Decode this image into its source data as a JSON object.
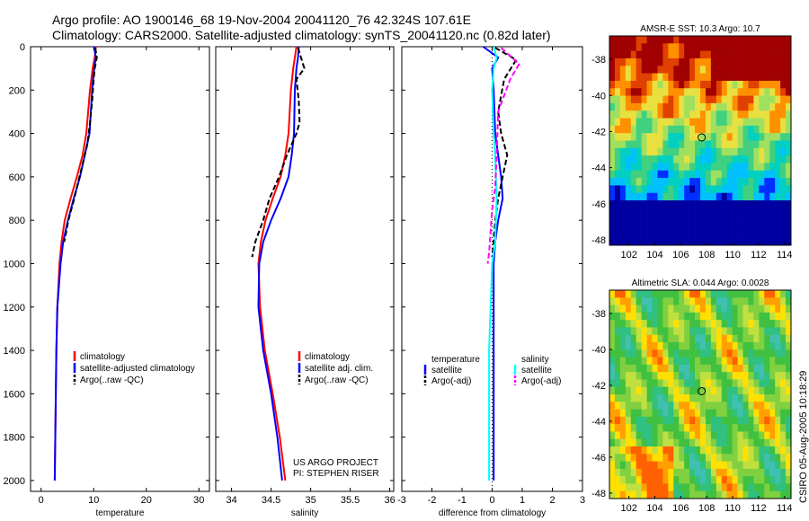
{
  "header": {
    "line1": "Argo profile: AO 1900146_68 19-Nov-2004 20041120_76 42.324S 107.61E",
    "line2": "Climatology: CARS2000. Satellite-adjusted climatology: synTS_20041120.nc (0.82d later)"
  },
  "credit": "CSIRO 05-Aug-2005 10:18:29",
  "colors": {
    "climatology": "#ff0000",
    "satellite": "#0000ff",
    "argo": "#000000",
    "diff_temperature_satellite": "#0000ff",
    "diff_temperature_argo": "#000000",
    "diff_salinity_satellite": "#00ffff",
    "diff_salinity_argo": "#ff00ff"
  },
  "chart_data": [
    {
      "id": "temperature",
      "type": "line",
      "xlabel": "temperature",
      "ylabel": "",
      "xlim": [
        -2,
        32
      ],
      "ylim": [
        2050,
        0
      ],
      "xticks": [
        "0",
        "10",
        "20",
        "30"
      ],
      "yticks": [
        "0",
        "200",
        "400",
        "600",
        "800",
        "1000",
        "1200",
        "1400",
        "1600",
        "1800",
        "2000"
      ],
      "legend": [
        "climatology",
        "satellite-adjusted climatology",
        "Argo(..raw -QC)"
      ],
      "series": [
        {
          "name": "climatology",
          "x": [
            10.4,
            10.2,
            9.8,
            9.3,
            8.6,
            7.9,
            6.8,
            5.6,
            4.5,
            3.9,
            3.5,
            3.1,
            2.9,
            2.8,
            2.7,
            2.6
          ],
          "y": [
            0,
            50,
            100,
            200,
            400,
            500,
            600,
            700,
            800,
            900,
            1000,
            1200,
            1400,
            1600,
            1800,
            2000
          ]
        },
        {
          "name": "satellite-adjusted climatology",
          "x": [
            10.1,
            10.4,
            10.1,
            9.7,
            9.2,
            8.3,
            7.4,
            6.2,
            5.1,
            4.2,
            3.7,
            3.1,
            2.9,
            2.8,
            2.7,
            2.6
          ],
          "y": [
            0,
            50,
            100,
            200,
            400,
            500,
            600,
            700,
            800,
            900,
            1000,
            1200,
            1400,
            1600,
            1800,
            2000
          ]
        },
        {
          "name": "Argo(..raw -QC)",
          "x": [
            10.3,
            10.6,
            10.2,
            10.0,
            9.7,
            9.3,
            8.8,
            8.3,
            7.3,
            6.3,
            5.2,
            4.4
          ],
          "y": [
            5,
            50,
            100,
            150,
            250,
            350,
            450,
            500,
            600,
            700,
            800,
            900
          ]
        }
      ]
    },
    {
      "id": "salinity",
      "type": "line",
      "xlabel": "salinity",
      "ylabel": "",
      "xlim": [
        33.8,
        36.05
      ],
      "ylim": [
        2050,
        0
      ],
      "xticks": [
        "34",
        "34.5",
        "35",
        "35.5",
        "36"
      ],
      "legend": [
        "climatology",
        "satellite adj. clim.",
        "Argo(..raw -QC)"
      ],
      "annotation": [
        "US ARGO PROJECT",
        "PI: STEPHEN RISER"
      ],
      "series": [
        {
          "name": "climatology",
          "x": [
            34.82,
            34.8,
            34.78,
            34.75,
            34.72,
            34.68,
            34.62,
            34.52,
            34.43,
            34.37,
            34.34,
            34.36,
            34.42,
            34.52,
            34.61,
            34.68
          ],
          "y": [
            0,
            50,
            100,
            200,
            400,
            500,
            600,
            700,
            800,
            900,
            1000,
            1200,
            1400,
            1600,
            1800,
            2000
          ]
        },
        {
          "name": "satellite adj. clim.",
          "x": [
            34.85,
            34.84,
            34.82,
            34.8,
            34.79,
            34.76,
            34.72,
            34.62,
            34.5,
            34.4,
            34.35,
            34.34,
            34.4,
            34.5,
            34.58,
            34.64
          ],
          "y": [
            0,
            50,
            100,
            200,
            400,
            500,
            600,
            700,
            800,
            900,
            1000,
            1200,
            1400,
            1600,
            1800,
            2000
          ]
        },
        {
          "name": "Argo(..raw -QC)",
          "x": [
            34.84,
            34.92,
            34.82,
            34.85,
            34.86,
            34.82,
            34.7,
            34.6,
            34.48,
            34.4,
            34.3,
            34.26
          ],
          "y": [
            5,
            100,
            150,
            250,
            350,
            400,
            500,
            600,
            700,
            800,
            900,
            970
          ]
        }
      ]
    },
    {
      "id": "difference",
      "type": "line",
      "xlabel": "difference from climatology",
      "ylabel": "",
      "xlim": [
        -3,
        3
      ],
      "ylim": [
        2050,
        0
      ],
      "xticks": [
        "-3",
        "-2",
        "-1",
        "0",
        "1",
        "2",
        "3"
      ],
      "legend_temperature": [
        "temperature",
        "satellite",
        "Argo(-adj)"
      ],
      "legend_salinity": [
        "salinity",
        "satellite",
        "Argo(-adj)"
      ],
      "series": [
        {
          "name": "temperature satellite",
          "x": [
            -0.3,
            0.2,
            0.0,
            0.05,
            0.1,
            0.2,
            0.3,
            0.35,
            0.2,
            0.1,
            0.05,
            0.05,
            0.05,
            0.05,
            0.05
          ],
          "y": [
            0,
            50,
            100,
            200,
            400,
            500,
            600,
            700,
            800,
            900,
            1000,
            1200,
            1400,
            1600,
            2000
          ]
        },
        {
          "name": "temperature Argo(-adj)",
          "x": [
            0.1,
            0.8,
            0.4,
            0.2,
            0.3,
            0.5,
            0.35,
            0.2,
            0.1,
            0.05,
            0.0
          ],
          "y": [
            5,
            60,
            150,
            300,
            400,
            500,
            600,
            700,
            800,
            900,
            970
          ]
        },
        {
          "name": "salinity satellite",
          "x": [
            0.05,
            0.15,
            0.05,
            0.0,
            0.05,
            0.1,
            0.15,
            0.1,
            0.0,
            -0.05,
            -0.1,
            -0.1,
            -0.1
          ],
          "y": [
            0,
            50,
            100,
            200,
            400,
            500,
            700,
            900,
            1000,
            1200,
            1400,
            1600,
            2000
          ]
        },
        {
          "name": "salinity Argo(-adj)",
          "x": [
            0.3,
            0.9,
            0.6,
            0.2,
            0.15,
            0.1,
            0.0,
            -0.05,
            -0.1,
            -0.15
          ],
          "y": [
            5,
            80,
            150,
            300,
            500,
            650,
            750,
            850,
            950,
            1000
          ]
        }
      ]
    },
    {
      "id": "sst-map",
      "type": "heatmap",
      "title": "AMSR-E SST: 10.3 Argo: 10.7",
      "xlim": [
        100.5,
        114.5
      ],
      "ylim": [
        -48.3,
        -36.7
      ],
      "xticks": [
        "102",
        "104",
        "106",
        "108",
        "110",
        "112",
        "114"
      ],
      "yticks": [
        "-38",
        "-40",
        "-42",
        "-44",
        "-46",
        "-48"
      ],
      "marker": {
        "lon": 107.61,
        "lat": -42.324
      }
    },
    {
      "id": "sla-map",
      "type": "heatmap",
      "title": "Altimetric SLA: 0.044 Argo: 0.0028",
      "xlim": [
        100.5,
        114.5
      ],
      "ylim": [
        -48.3,
        -36.7
      ],
      "xticks": [
        "102",
        "104",
        "106",
        "108",
        "110",
        "112",
        "114"
      ],
      "yticks": [
        "-38",
        "-40",
        "-42",
        "-44",
        "-46",
        "-48"
      ],
      "marker": {
        "lon": 107.61,
        "lat": -42.324
      }
    }
  ]
}
